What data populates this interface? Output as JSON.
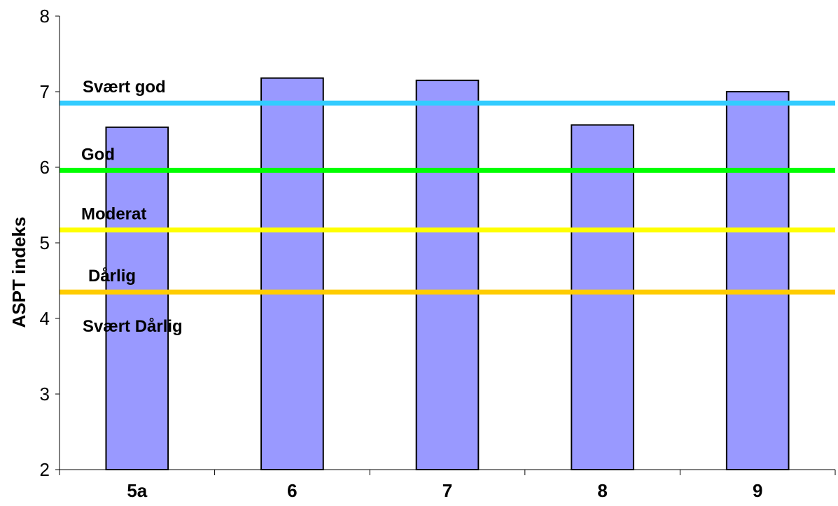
{
  "chart_data": {
    "type": "bar",
    "categories": [
      "5a",
      "6",
      "7",
      "8",
      "9"
    ],
    "values": [
      6.53,
      7.18,
      7.15,
      6.56,
      7.0
    ],
    "title": "",
    "xlabel": "",
    "ylabel": "ASPT indeks",
    "ylim": [
      2,
      8
    ],
    "yticks": [
      2,
      3,
      4,
      5,
      6,
      7,
      8
    ],
    "bar_color": "#9999ff",
    "grid": false,
    "legend": "none",
    "thresholds": [
      {
        "value": 6.85,
        "color": "#33ccff",
        "label": "Svært god"
      },
      {
        "value": 5.96,
        "color": "#00ff00",
        "label": "God"
      },
      {
        "value": 5.17,
        "color": "#ffff00",
        "label": "Moderat"
      },
      {
        "value": 4.35,
        "color": "#ffcc00",
        "label": "Dårlig"
      }
    ],
    "bottom_band_label": "Svært Dårlig"
  }
}
